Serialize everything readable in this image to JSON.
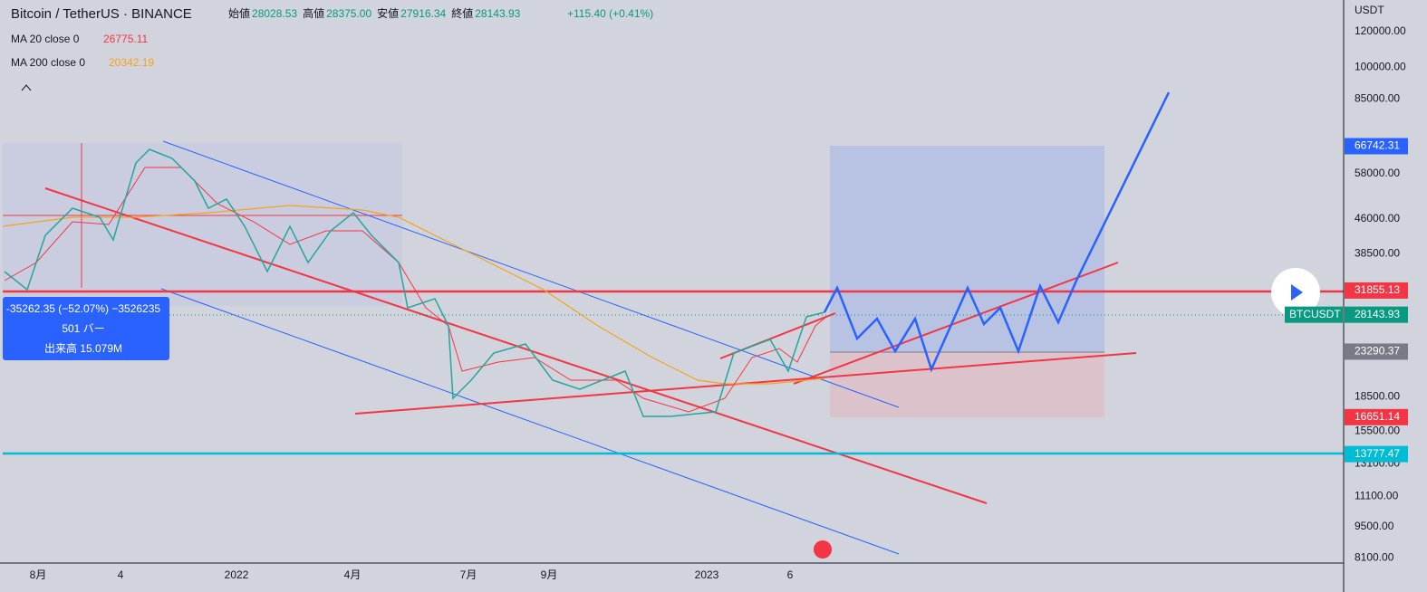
{
  "header": {
    "symbol": "Bitcoin / TetherUS · BINANCE",
    "ohlc": [
      {
        "label": "始値",
        "value": "28028.53"
      },
      {
        "label": "高値",
        "value": "28375.00"
      },
      {
        "label": "安値",
        "value": "27916.34"
      },
      {
        "label": "終値",
        "value": "28143.93"
      }
    ],
    "change": "+115.40 (+0.41%)",
    "indicators": [
      {
        "name": "MA 20 close 0",
        "value": "26775.11"
      },
      {
        "name": "MA 200 close 0",
        "value": "20342.19"
      }
    ]
  },
  "price_axis": {
    "currency": "USDT",
    "labels": [
      "120000.00",
      "100000.00",
      "85000.00",
      "58000.00",
      "46000.00",
      "38500.00",
      "18500.00",
      "15500.00",
      "13100.00",
      "11100.00",
      "9500.00",
      "8100.00"
    ],
    "tags": [
      {
        "label": "66742.31",
        "color": "#2962ff"
      },
      {
        "label": "31855.13",
        "color": "#f23645"
      },
      {
        "label": "28143.93",
        "color": "#089981",
        "symbol": "BTCUSDT"
      },
      {
        "label": "23290.37",
        "color": "#787b86"
      },
      {
        "label": "16651.14",
        "color": "#f23645"
      },
      {
        "label": "13777.47",
        "color": "#00bcd4"
      }
    ]
  },
  "time_axis": {
    "labels": [
      "8月",
      "4",
      "2022",
      "4月",
      "7月",
      "9月",
      "2023",
      "6"
    ]
  },
  "measure": {
    "line1": "-35262.35 (−52.07%) −3526235",
    "line2": "501 バー",
    "line3": "出来高 15.079M"
  }
}
